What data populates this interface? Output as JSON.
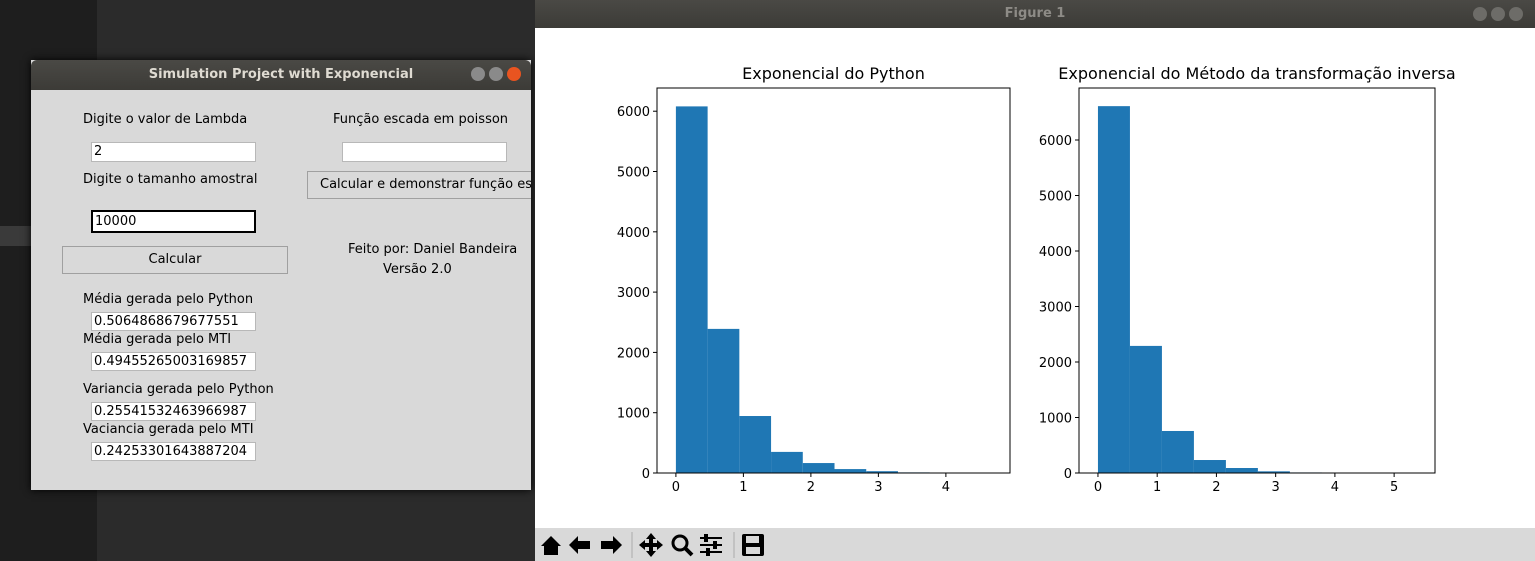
{
  "tk_window": {
    "title": "Simulation Project with Exponencial",
    "lambda_label": "Digite o valor de Lambda",
    "lambda_value": "2",
    "sample_label": "Digite o tamanho amostral",
    "sample_value": "10000",
    "calc_button": "Calcular",
    "mean_python_label": "Média gerada pelo Python",
    "mean_python_value": "0.5064868679677551",
    "mean_mti_label": "Média gerada pelo MTI",
    "mean_mti_value": "0.49455265003169857",
    "var_python_label": "Variancia gerada pelo Python",
    "var_python_value": "0.25541532463966987",
    "var_mti_label": "Vaciancia gerada pelo MTI",
    "var_mti_value": "0.24253301643887204",
    "poisson_label": "Função escada em poisson",
    "poisson_button": "Calcular e demonstrar função es",
    "author": "Feito por: Daniel Bandeira",
    "version": "Versão 2.0"
  },
  "figure_window": {
    "title": "Figure 1"
  },
  "chart_data": [
    {
      "type": "histogram",
      "title": "Exponencial do Python",
      "color": "#1f77b4",
      "bins": [
        0,
        0.47,
        0.94,
        1.41,
        1.88,
        2.35,
        2.82,
        3.29,
        3.76,
        4.23,
        4.7
      ],
      "values": [
        6080,
        2390,
        945,
        350,
        165,
        65,
        30,
        10,
        3,
        1
      ],
      "xlim": [
        -0.28,
        4.95
      ],
      "ylim": [
        0,
        6385
      ],
      "xticks": [
        0,
        1,
        2,
        3,
        4
      ],
      "yticks": [
        0,
        1000,
        2000,
        3000,
        4000,
        5000,
        6000
      ]
    },
    {
      "type": "histogram",
      "title": "Exponencial do Método da transformação inversa",
      "color": "#1f77b4",
      "bins": [
        0,
        0.54,
        1.08,
        1.62,
        2.16,
        2.7,
        3.24,
        3.78,
        4.32,
        4.86,
        5.4
      ],
      "values": [
        6610,
        2290,
        757,
        234,
        90,
        30,
        10,
        5,
        2,
        1
      ],
      "xlim": [
        -0.32,
        5.69
      ],
      "ylim": [
        0,
        6937
      ],
      "xticks": [
        0,
        1,
        2,
        3,
        4,
        5
      ],
      "yticks": [
        0,
        1000,
        2000,
        3000,
        4000,
        5000,
        6000
      ]
    }
  ]
}
